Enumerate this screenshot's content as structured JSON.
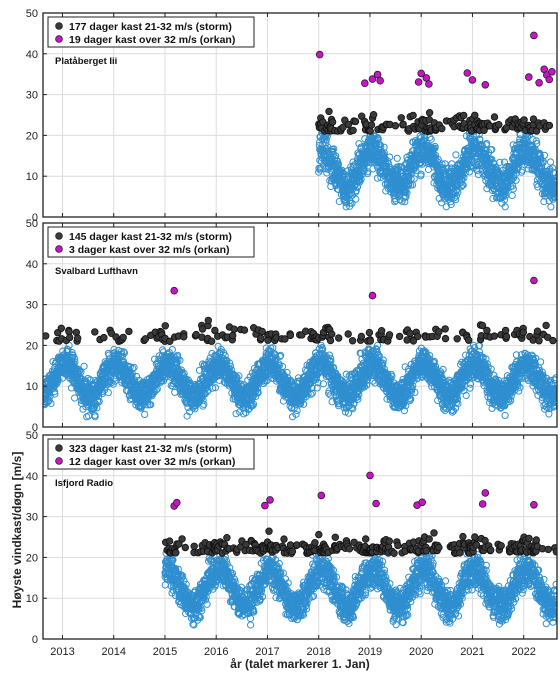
{
  "chart_data": {
    "type": "scatter",
    "xlabel": "år (talet markerer 1. Jan)",
    "ylabel": "Høyste vindkast/døgn [m/s]",
    "xlim": [
      2012.62,
      2022.65
    ],
    "xticks": [
      2013,
      2014,
      2015,
      2016,
      2017,
      2018,
      2019,
      2020,
      2021,
      2022
    ],
    "yticks": [
      0,
      10,
      20,
      30,
      40,
      50
    ],
    "ylim": [
      0,
      50
    ],
    "grid": true,
    "colors": {
      "normal": "#2f8fd0",
      "storm": "#3a3a3a",
      "orkan": "#cc11cc"
    },
    "panels": [
      {
        "station": "Platåberget Iii",
        "data_start": 2018.0,
        "legend": [
          {
            "label": "177 dager kast 21-32 m/s (storm)",
            "color": "#3a3a3a"
          },
          {
            "label": "19 dager kast over 32 m/s (orkan)",
            "color": "#cc11cc"
          }
        ],
        "orkan_points": [
          [
            2018.02,
            39.8
          ],
          [
            2018.9,
            32.8
          ],
          [
            2019.05,
            33.8
          ],
          [
            2019.15,
            34.9
          ],
          [
            2019.2,
            33.4
          ],
          [
            2019.95,
            33.1
          ],
          [
            2020.0,
            35.2
          ],
          [
            2020.1,
            34.1
          ],
          [
            2020.15,
            32.6
          ],
          [
            2020.9,
            35.3
          ],
          [
            2021.0,
            33.6
          ],
          [
            2021.25,
            32.4
          ],
          [
            2022.1,
            34.3
          ],
          [
            2022.2,
            44.5
          ],
          [
            2022.4,
            36.2
          ],
          [
            2022.45,
            34.8
          ],
          [
            2022.5,
            33.7
          ],
          [
            2022.3,
            32.9
          ],
          [
            2022.55,
            35.6
          ]
        ]
      },
      {
        "station": "Svalbard Lufthavn",
        "data_start": 2012.62,
        "legend": [
          {
            "label": "145 dager kast 21-32 m/s (storm)",
            "color": "#3a3a3a"
          },
          {
            "label": "3 dager kast over 32 m/s (orkan)",
            "color": "#cc11cc"
          }
        ],
        "orkan_points": [
          [
            2015.18,
            33.4
          ],
          [
            2019.05,
            32.2
          ],
          [
            2022.2,
            35.9
          ]
        ]
      },
      {
        "station": "Isfjord Radio",
        "data_start": 2015.0,
        "legend": [
          {
            "label": "323 dager kast 21-32 m/s (storm)",
            "color": "#3a3a3a"
          },
          {
            "label": "12 dager kast over 32 m/s (orkan)",
            "color": "#cc11cc"
          }
        ],
        "orkan_points": [
          [
            2015.18,
            32.6
          ],
          [
            2015.23,
            33.4
          ],
          [
            2016.95,
            32.7
          ],
          [
            2017.05,
            34.1
          ],
          [
            2018.05,
            35.2
          ],
          [
            2019.0,
            40.1
          ],
          [
            2019.12,
            33.2
          ],
          [
            2019.92,
            32.8
          ],
          [
            2020.02,
            33.5
          ],
          [
            2021.2,
            33.1
          ],
          [
            2021.25,
            35.8
          ],
          [
            2022.2,
            32.9
          ]
        ]
      }
    ]
  }
}
